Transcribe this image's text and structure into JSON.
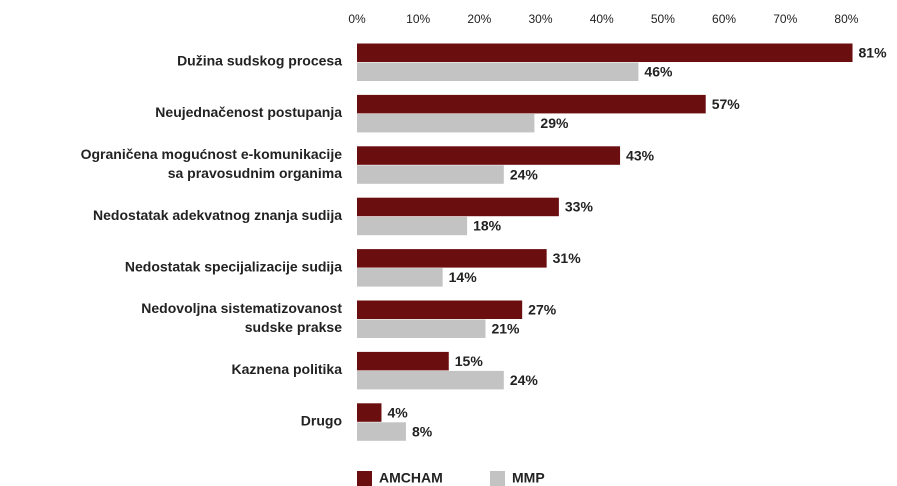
{
  "chart_data": {
    "type": "bar",
    "orientation": "horizontal",
    "categories": [
      [
        "Dužina sudskog procesa"
      ],
      [
        "Neujednačenost postupanja"
      ],
      [
        "Ograničena mogućnost e-komunikacije",
        "sa pravosudnim organima"
      ],
      [
        "Nedostatak adekvatnog znanja sudija"
      ],
      [
        "Nedostatak specijalizacije sudija"
      ],
      [
        "Nedovoljna sistematizovanost",
        "sudske prakse"
      ],
      [
        "Kaznena politika"
      ],
      [
        "Drugo"
      ]
    ],
    "series": [
      {
        "name": "AMCHAM",
        "color": "#6b0e10",
        "values": [
          81,
          57,
          43,
          33,
          31,
          27,
          15,
          4
        ],
        "value_labels": [
          "81%",
          "57%",
          "43%",
          "33%",
          "31%",
          "27%",
          "15%",
          "4%"
        ]
      },
      {
        "name": "MMP",
        "color": "#c3c3c3",
        "values": [
          46,
          29,
          24,
          18,
          14,
          21,
          24,
          8
        ],
        "value_labels": [
          "46%",
          "29%",
          "24%",
          "18%",
          "14%",
          "21%",
          "24%",
          "8%"
        ]
      }
    ],
    "xlim": [
      0,
      85
    ],
    "xticks": [
      {
        "value": 0,
        "label": "0%"
      },
      {
        "value": 10,
        "label": "10%"
      },
      {
        "value": 20,
        "label": "20%"
      },
      {
        "value": 30,
        "label": "30%"
      },
      {
        "value": 40,
        "label": "40%"
      },
      {
        "value": 50,
        "label": "50%"
      },
      {
        "value": 60,
        "label": "60%"
      },
      {
        "value": 70,
        "label": "70%"
      },
      {
        "value": 80,
        "label": "80%"
      }
    ],
    "legend": "bottom"
  }
}
